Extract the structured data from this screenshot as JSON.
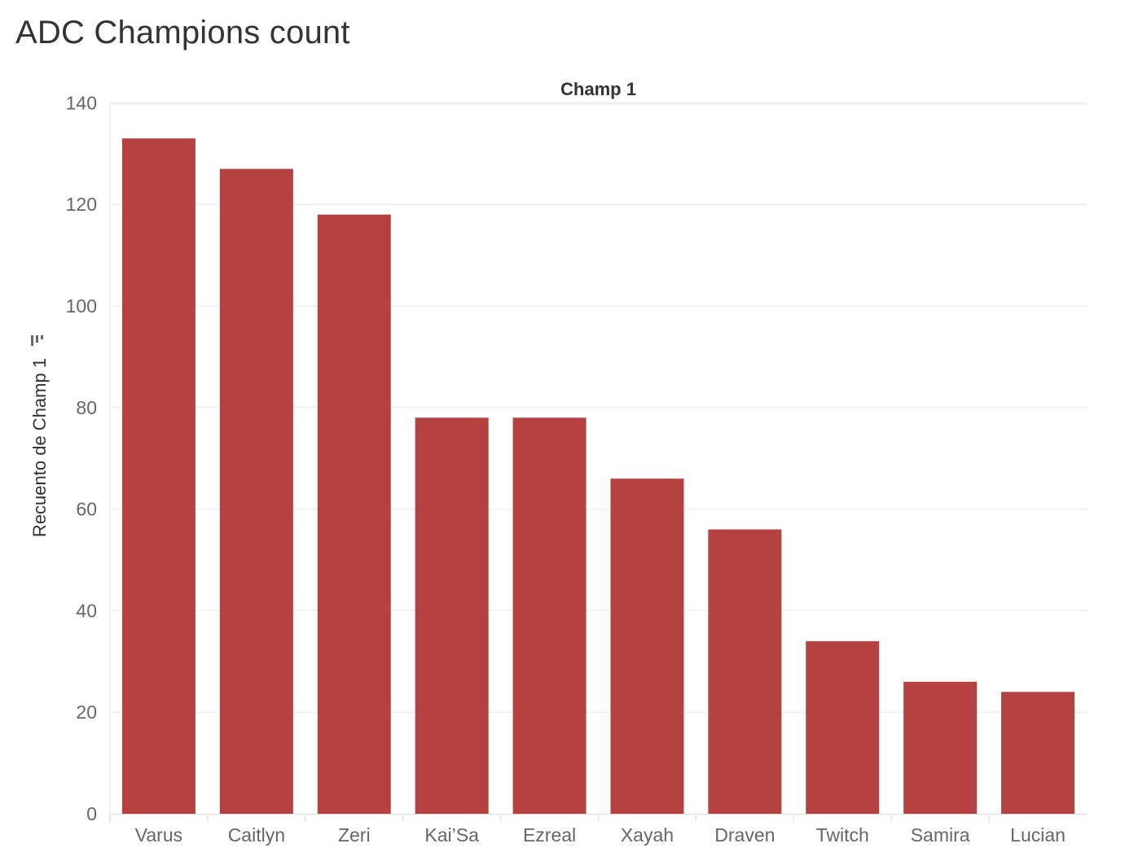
{
  "title": "ADC Champions count",
  "chart_data": {
    "type": "bar",
    "header": "Champ 1",
    "ylabel": "Recuento de Champ 1",
    "sort_icon": "sort-descending-icon",
    "categories": [
      "Varus",
      "Caitlyn",
      "Zeri",
      "Kai’Sa",
      "Ezreal",
      "Xayah",
      "Draven",
      "Twitch",
      "Samira",
      "Lucian"
    ],
    "values": [
      133,
      127,
      118,
      78,
      78,
      66,
      56,
      34,
      26,
      24
    ],
    "ylim": [
      0,
      140
    ],
    "yticks": [
      0,
      20,
      40,
      60,
      80,
      100,
      120,
      140
    ],
    "grid": true,
    "bar_color": "#b64141",
    "grid_color": "#eeeeee"
  }
}
